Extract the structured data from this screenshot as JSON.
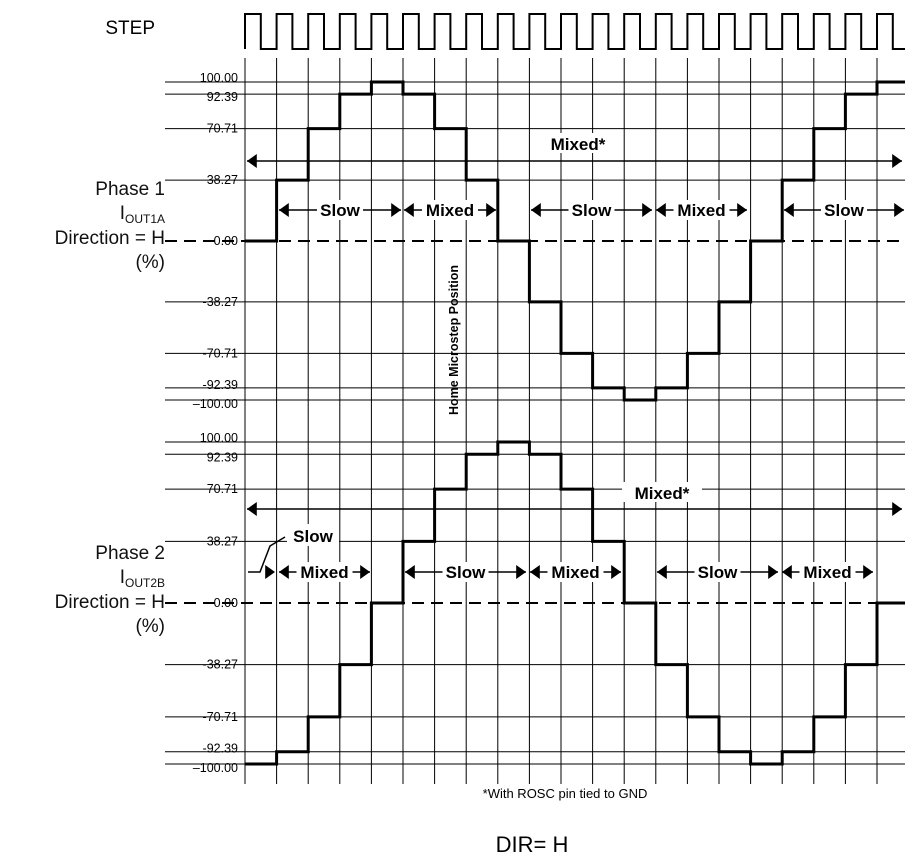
{
  "step_label": "STEP",
  "phase1": {
    "name": "Phase 1",
    "current_main": "I",
    "current_sub": "OUT1A",
    "direction": "Direction = H",
    "units": "(%)",
    "mixed_star": "Mixed*",
    "decay_labels": [
      "Slow",
      "Mixed",
      "Slow",
      "Mixed",
      "Slow"
    ],
    "series": [
      "0.00",
      "38.27",
      "70.71",
      "92.39",
      "100.00",
      "92.39",
      "70.71",
      "38.27",
      "0.00",
      "-38.27",
      "-70.71",
      "-92.39",
      "-100.00",
      "-92.39",
      "-70.71",
      "-38.27",
      "0.00",
      "38.27",
      "70.71",
      "92.39",
      "100.00"
    ],
    "tick_labels": [
      "100.00",
      "92.39",
      "70.71",
      "38.27",
      "0.00",
      "-38.27",
      "-70.71",
      "-92.39",
      "–100.00"
    ]
  },
  "phase2": {
    "name": "Phase 2",
    "current_main": "I",
    "current_sub": "OUT2B",
    "direction": "Direction = H",
    "units": "(%)",
    "mixed_star": "Mixed*",
    "decay_labels": [
      "Slow",
      "Mixed",
      "Slow",
      "Mixed",
      "Slow",
      "Mixed"
    ],
    "series": [
      "-100.00",
      "-92.39",
      "-70.71",
      "-38.27",
      "0.00",
      "38.27",
      "70.71",
      "92.39",
      "100.00",
      "92.39",
      "70.71",
      "38.27",
      "0.00",
      "-38.27",
      "-70.71",
      "-92.39",
      "-100.00",
      "-92.39",
      "-70.71",
      "-38.27",
      "0.00"
    ],
    "tick_labels": [
      "100.00",
      "92.39",
      "70.71",
      "38.27",
      "0.00",
      "-38.27",
      "-70.71",
      "-92.39",
      "–100.00"
    ]
  },
  "home_label": "Home Microstep Position",
  "footnote": "*With ROSC pin tied to GND",
  "dir_label": "DIR= H"
}
